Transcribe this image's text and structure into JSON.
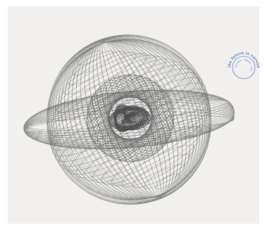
{
  "image": {
    "background_color": "#ffffff",
    "paper_color": "#f1f0ee",
    "line_color": "#555555",
    "seal_color": "#2a5db0"
  },
  "seal": {
    "outer_text": "the future is curved",
    "inner_text": "curved · future · the"
  }
}
